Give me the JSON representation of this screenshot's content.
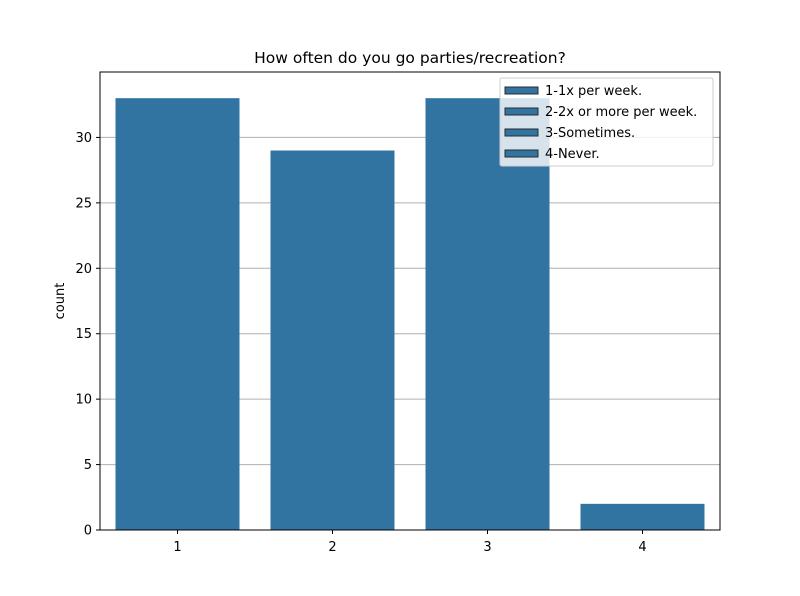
{
  "chart_data": {
    "type": "bar",
    "title": "How often do you go parties/recreation?",
    "xlabel": "",
    "ylabel": "count",
    "categories": [
      "1",
      "2",
      "3",
      "4"
    ],
    "values": [
      33,
      29,
      33,
      2
    ],
    "ylim": [
      0,
      35
    ],
    "yticks": [
      0,
      5,
      10,
      15,
      20,
      25,
      30
    ],
    "grid": "y",
    "bar_color": "#3274a1",
    "legend": {
      "placement": "top-right",
      "entries": [
        "1-1x per week.",
        "2-2x or more per week.",
        "3-Sometimes.",
        "4-Never."
      ]
    }
  }
}
